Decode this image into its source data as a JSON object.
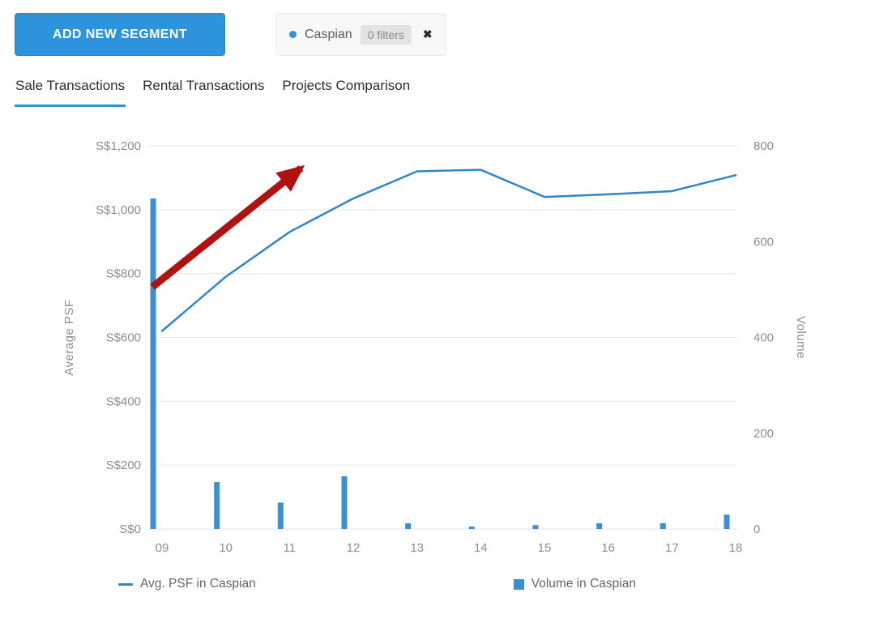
{
  "header": {
    "add_segment_button": "ADD NEW SEGMENT",
    "segment_chip": {
      "name": "Caspian",
      "filters_label": "0 filters",
      "close_icon": "✖",
      "dot_color": "#3d8fd4"
    }
  },
  "tabs": [
    {
      "label": "Sale Transactions",
      "active": true
    },
    {
      "label": "Rental Transactions",
      "active": false
    },
    {
      "label": "Projects Comparison",
      "active": false
    }
  ],
  "chart_data": {
    "type": "combo-line-bar",
    "categories": [
      "09",
      "10",
      "11",
      "12",
      "13",
      "14",
      "15",
      "16",
      "17",
      "18"
    ],
    "series": [
      {
        "name": "Avg. PSF in Caspian",
        "type": "line",
        "axis": "left",
        "color": "#2f87c8",
        "values": [
          620,
          790,
          930,
          1035,
          1120,
          1125,
          1040,
          1048,
          1058,
          1108
        ]
      },
      {
        "name": "Volume in Caspian",
        "type": "bar",
        "axis": "right",
        "color": "#3d8fd4",
        "values": [
          690,
          98,
          55,
          110,
          12,
          5,
          8,
          12,
          12,
          30
        ]
      }
    ],
    "left_axis": {
      "label": "Average PSF",
      "min": 0,
      "max": 1200,
      "step": 200
    },
    "right_axis": {
      "label": "Volume",
      "min": 0,
      "max": 800,
      "step": 200
    },
    "left_ticks": [
      "S$0",
      "S$200",
      "S$400",
      "S$600",
      "S$800",
      "S$1,000",
      "S$1,200"
    ],
    "right_ticks": [
      "0",
      "200",
      "400",
      "600",
      "800"
    ],
    "grid": true,
    "legend_position": "bottom",
    "annotation": {
      "type": "arrow",
      "color": "#b01111",
      "from": {
        "x": -0.15,
        "psf": 758
      },
      "to": {
        "x": 2.18,
        "psf": 1130
      }
    },
    "legend": [
      {
        "label": "Avg. PSF in Caspian",
        "swatch": "line",
        "color": "#2f87c8"
      },
      {
        "label": "Volume in Caspian",
        "swatch": "square",
        "color": "#3d8fd4"
      }
    ]
  }
}
